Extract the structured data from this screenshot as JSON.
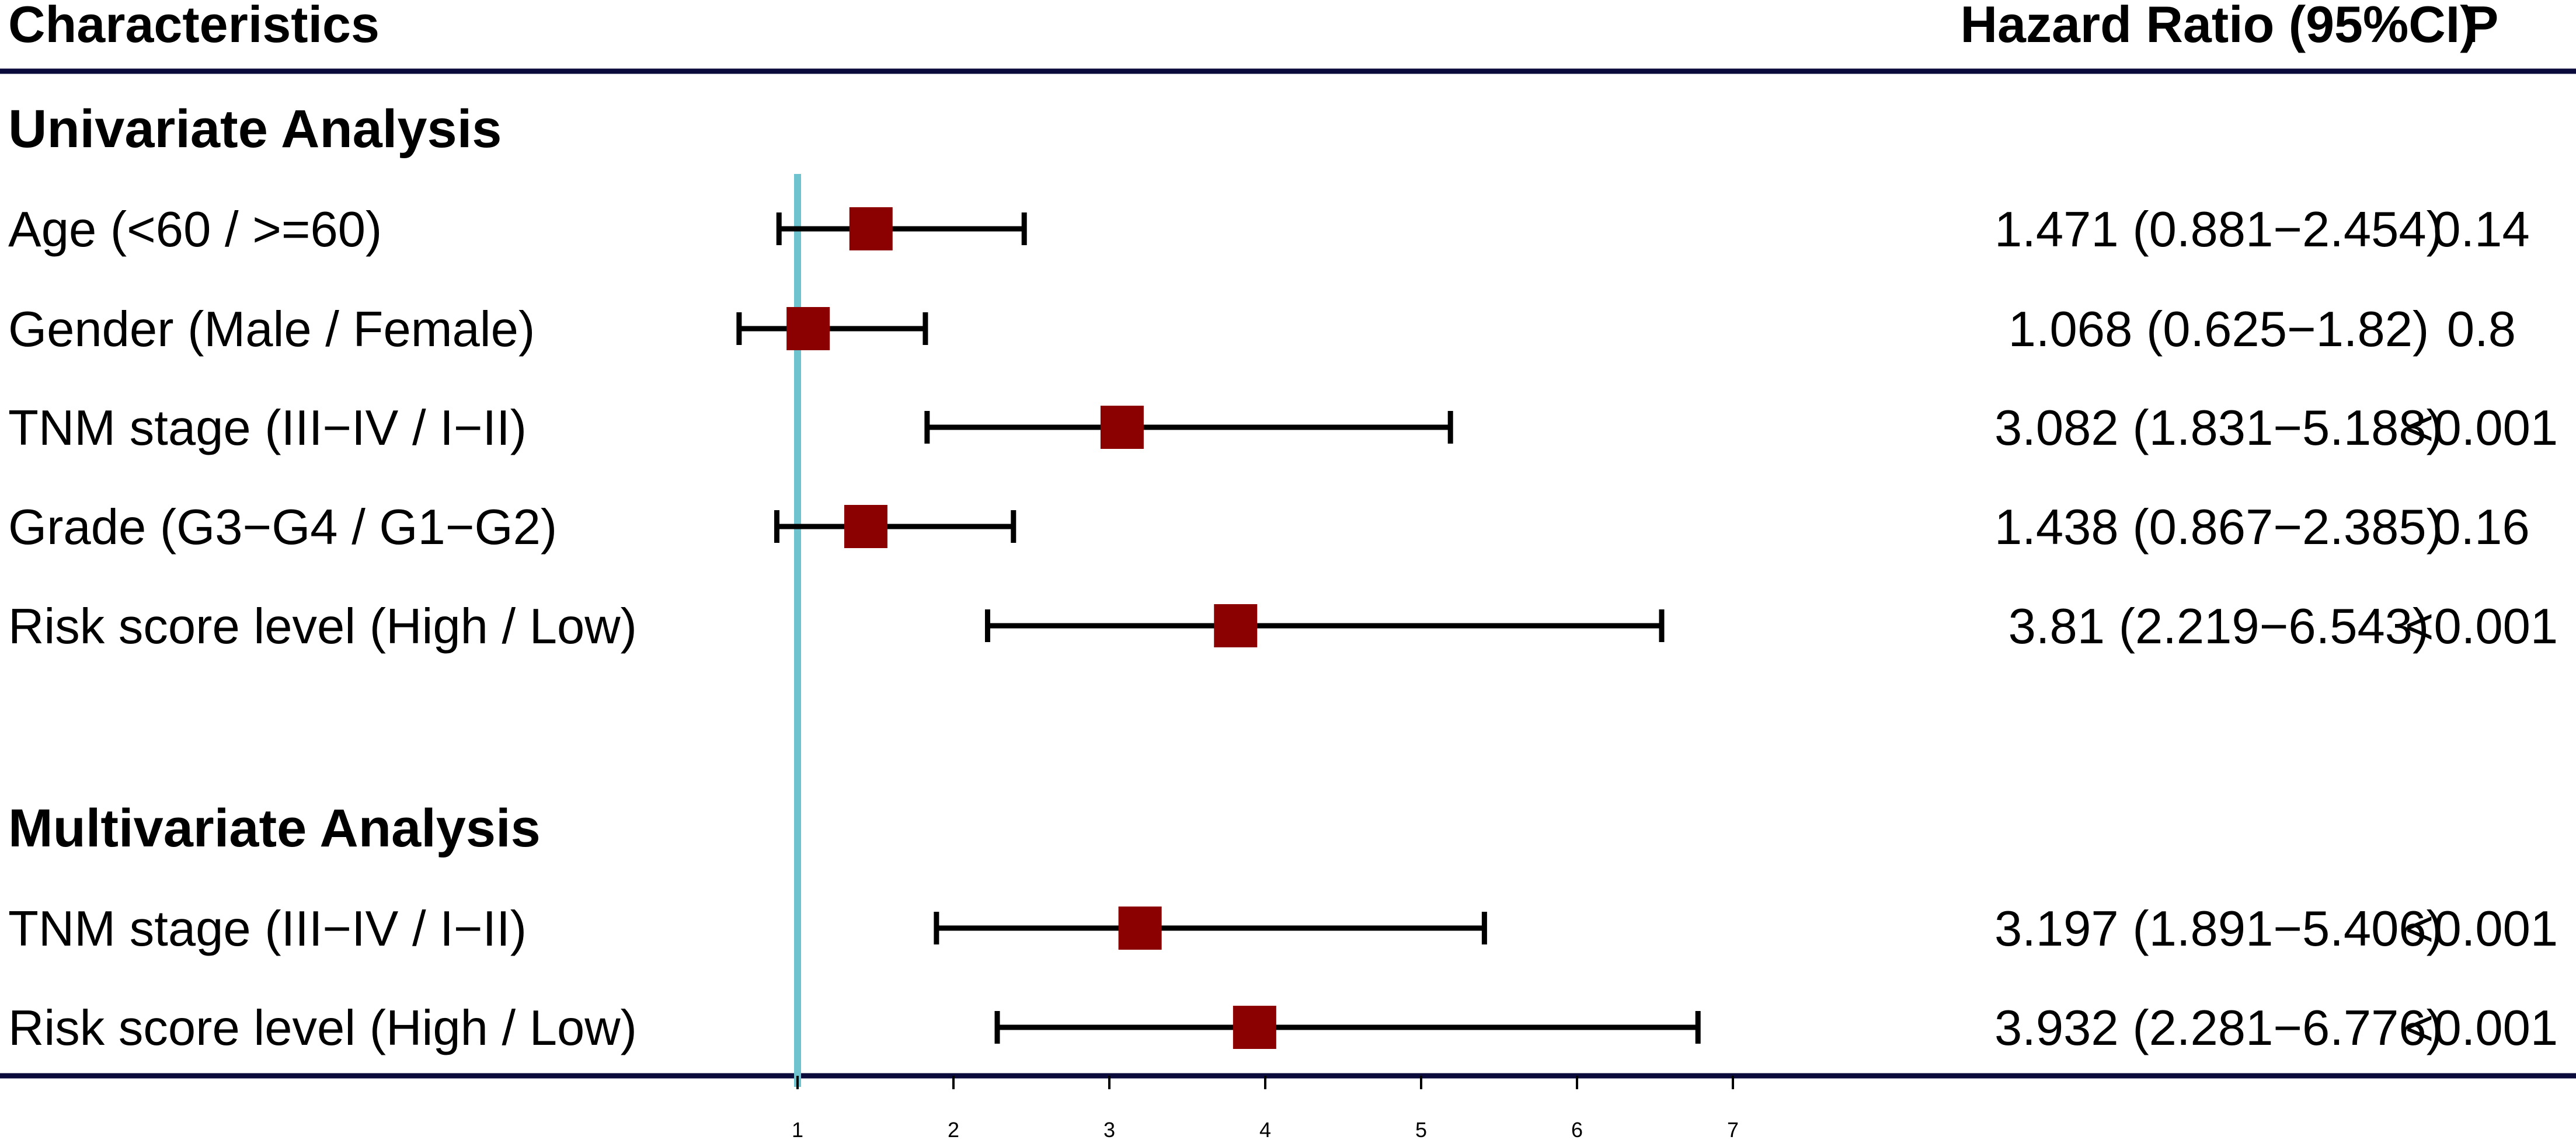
{
  "header": {
    "characteristics": "Characteristics",
    "hazard_ratio": "Hazard Ratio (95%CI)",
    "p": "P"
  },
  "chart_data": {
    "type": "forest",
    "reference_line": 1,
    "x_ticks": [
      1,
      2,
      3,
      4,
      5,
      6,
      7
    ],
    "xlim": [
      1,
      7
    ],
    "marker_color": "#8b0000",
    "reference_color": "#6fc3cf",
    "rule_color": "#0b0b3b",
    "sections": [
      {
        "title": "Univariate Analysis",
        "rows": [
          {
            "label": "Age (<60 / >=60)",
            "hr": 1.471,
            "lo": 0.881,
            "hi": 2.454,
            "hr_text": "1.471 (0.881−2.454)",
            "p": "0.14"
          },
          {
            "label": "Gender (Male / Female)",
            "hr": 1.068,
            "lo": 0.625,
            "hi": 1.82,
            "hr_text": "1.068 (0.625−1.82)",
            "p": "0.8"
          },
          {
            "label": "TNM stage (III−IV / I−II)",
            "hr": 3.082,
            "lo": 1.831,
            "hi": 5.188,
            "hr_text": "3.082 (1.831−5.188)",
            "p": "<0.001"
          },
          {
            "label": "Grade (G3−G4 / G1−G2)",
            "hr": 1.438,
            "lo": 0.867,
            "hi": 2.385,
            "hr_text": "1.438 (0.867−2.385)",
            "p": "0.16"
          },
          {
            "label": "Risk score level (High / Low)",
            "hr": 3.81,
            "lo": 2.219,
            "hi": 6.543,
            "hr_text": "3.81 (2.219−6.543)",
            "p": "<0.001"
          }
        ]
      },
      {
        "title": "Multivariate Analysis",
        "rows": [
          {
            "label": "TNM stage (III−IV / I−II)",
            "hr": 3.197,
            "lo": 1.891,
            "hi": 5.406,
            "hr_text": "3.197 (1.891−5.406)",
            "p": "<0.001"
          },
          {
            "label": "Risk score level (High / Low)",
            "hr": 3.932,
            "lo": 2.281,
            "hi": 6.776,
            "hr_text": "3.932 (2.281−6.776)",
            "p": "<0.001"
          }
        ]
      }
    ]
  }
}
